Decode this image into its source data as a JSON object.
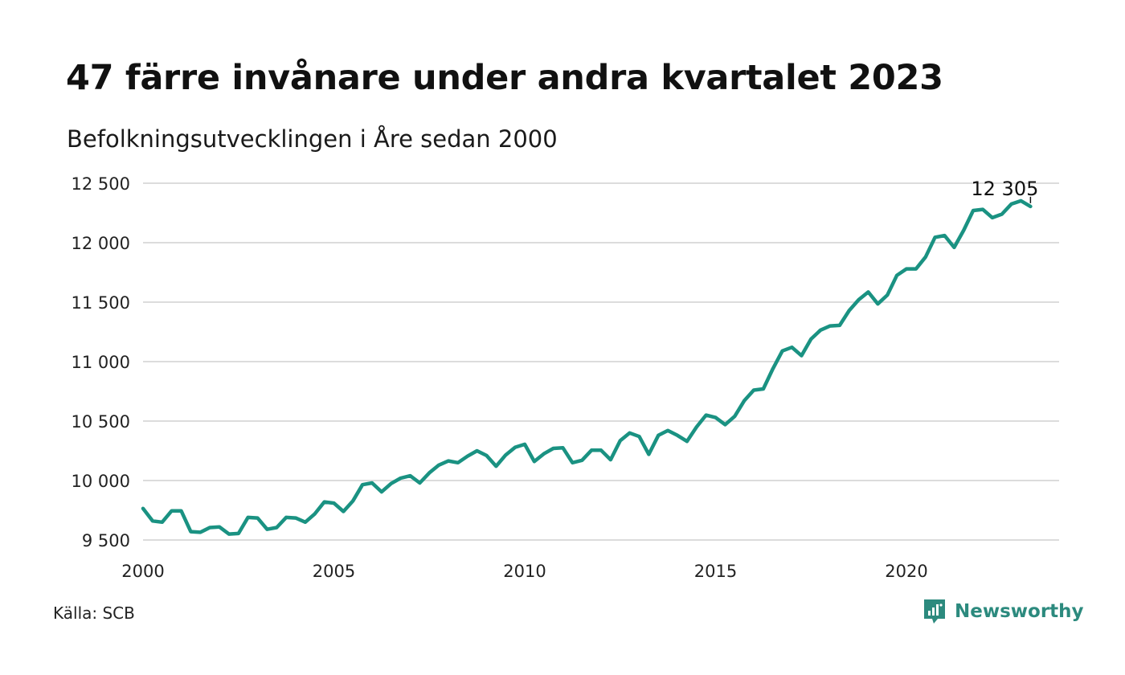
{
  "title": "47 färre invånare under andra kvartalet 2023",
  "subtitle": "Befolkningsutvecklingen i Åre sedan 2000",
  "source": "Källa: SCB",
  "brand": {
    "name": "Newsworthy",
    "icon": "newsworthy-logo-icon",
    "color": "#2c8a7e"
  },
  "colors": {
    "line": "#1a9282",
    "grid": "#dcdcdc",
    "text": "#111111"
  },
  "chart_data": {
    "type": "line",
    "title": "47 färre invånare under andra kvartalet 2023",
    "subtitle": "Befolkningsutvecklingen i Åre sedan 2000",
    "xlabel": "",
    "ylabel": "",
    "xlim": [
      2000,
      2024
    ],
    "ylim": [
      9500,
      12500
    ],
    "y_ticks": [
      9500,
      10000,
      10500,
      11000,
      11500,
      12000,
      12500
    ],
    "y_tick_labels": [
      "9 500",
      "10 000",
      "10 500",
      "11 000",
      "11 500",
      "12 000",
      "12 500"
    ],
    "x_ticks": [
      2000,
      2005,
      2010,
      2015,
      2020
    ],
    "x_tick_labels": [
      "2000",
      "2005",
      "2010",
      "2015",
      "2020"
    ],
    "grid": "horizontal",
    "annotation": {
      "label": "12 305",
      "x": 2023.25,
      "y": 12305
    },
    "series": [
      {
        "x": [
          2000.0,
          2000.25,
          2000.5,
          2000.75,
          2001.0,
          2001.25,
          2001.5,
          2001.75,
          2002.0,
          2002.25,
          2002.5,
          2002.75,
          2003.0,
          2003.25,
          2003.5,
          2003.75,
          2004.0,
          2004.25,
          2004.5,
          2004.75,
          2005.0,
          2005.25,
          2005.5,
          2005.75,
          2006.0,
          2006.25,
          2006.5,
          2006.75,
          2007.0,
          2007.25,
          2007.5,
          2007.75,
          2008.0,
          2008.25,
          2008.5,
          2008.75,
          2009.0,
          2009.25,
          2009.5,
          2009.75,
          2010.0,
          2010.25,
          2010.5,
          2010.75,
          2011.0,
          2011.25,
          2011.5,
          2011.75,
          2012.0,
          2012.25,
          2012.5,
          2012.75,
          2013.0,
          2013.25,
          2013.5,
          2013.75,
          2014.0,
          2014.25,
          2014.5,
          2014.75,
          2015.0,
          2015.25,
          2015.5,
          2015.75,
          2016.0,
          2016.25,
          2016.5,
          2016.75,
          2017.0,
          2017.25,
          2017.5,
          2017.75,
          2018.0,
          2018.25,
          2018.5,
          2018.75,
          2019.0,
          2019.25,
          2019.5,
          2019.75,
          2020.0,
          2020.25,
          2020.5,
          2020.75,
          2021.0,
          2021.25,
          2021.5,
          2021.75,
          2022.0,
          2022.25,
          2022.5,
          2022.75,
          2023.0,
          2023.25
        ],
        "values": [
          9765,
          9660,
          9650,
          9745,
          9745,
          9570,
          9565,
          9605,
          9610,
          9550,
          9555,
          9690,
          9685,
          9590,
          9605,
          9690,
          9685,
          9650,
          9720,
          9820,
          9810,
          9740,
          9830,
          9965,
          9980,
          9905,
          9975,
          10020,
          10040,
          9980,
          10065,
          10130,
          10165,
          10150,
          10205,
          10250,
          10210,
          10120,
          10215,
          10280,
          10305,
          10160,
          10225,
          10270,
          10275,
          10150,
          10170,
          10255,
          10255,
          10175,
          10335,
          10400,
          10370,
          10220,
          10380,
          10420,
          10380,
          10330,
          10450,
          10550,
          10530,
          10470,
          10540,
          10670,
          10760,
          10770,
          10940,
          11090,
          11120,
          11050,
          11190,
          11265,
          11300,
          11305,
          11430,
          11520,
          11585,
          11485,
          11560,
          11725,
          11780,
          11780,
          11880,
          12045,
          12060,
          11960,
          12105,
          12270,
          12280,
          12210,
          12240,
          12325,
          12352,
          12305
        ]
      }
    ]
  }
}
